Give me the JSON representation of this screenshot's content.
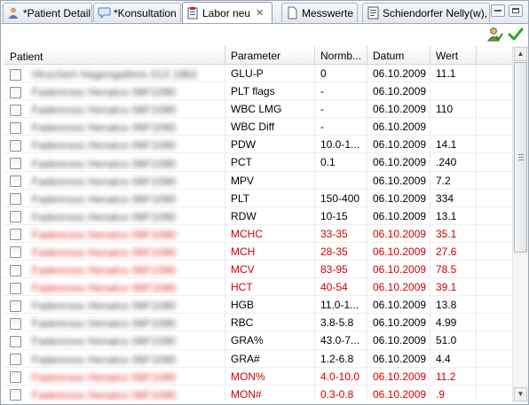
{
  "tabs": [
    {
      "label": "*Patient Detail",
      "icon": "patient-icon"
    },
    {
      "label": "*Konsultation",
      "icon": "speech-bubble-icon"
    },
    {
      "label": "Labor neu",
      "icon": "lab-clipboard-icon",
      "active": true,
      "closable": true
    },
    {
      "label": "Messwerte",
      "icon": "document-icon"
    },
    {
      "label": "Schiendorfer Nelly(w),",
      "icon": "patient-form-icon"
    }
  ],
  "toolbar": {
    "icons": [
      "assign-patient-icon",
      "confirm-check-icon"
    ]
  },
  "table": {
    "columns": [
      "Patient",
      "Parameter",
      "Normb...",
      "Datum",
      "Wert"
    ],
    "rows": [
      {
        "patient": "Hirschert Hagengallinis 013 1962",
        "parameter": "GLU-P",
        "norm": "0",
        "date": "06.10.2009",
        "value": "11.1",
        "flag": false
      },
      {
        "patient": "Fadenross Henalco 06F1090",
        "parameter": "PLT flags",
        "norm": "-",
        "date": "06.10.2009",
        "value": "",
        "flag": false
      },
      {
        "patient": "Fadenross Henalco 06F1090",
        "parameter": "WBC LMG",
        "norm": "-",
        "date": "06.10.2009",
        "value": "110",
        "flag": false
      },
      {
        "patient": "Fadenross Henalco 06F1090",
        "parameter": "WBC Diff",
        "norm": "-",
        "date": "06.10.2009",
        "value": "",
        "flag": false
      },
      {
        "patient": "Fadenross Henalco 06F1090",
        "parameter": "PDW",
        "norm": "10.0-1...",
        "date": "06.10.2009",
        "value": "14.1",
        "flag": false
      },
      {
        "patient": "Fadenross Henalco 06F1090",
        "parameter": "PCT",
        "norm": "0.1",
        "date": "06.10.2009",
        "value": ".240",
        "flag": false
      },
      {
        "patient": "Fadenross Henalco 06F1090",
        "parameter": "MPV",
        "norm": "",
        "date": "06.10.2009",
        "value": "7.2",
        "flag": false
      },
      {
        "patient": "Fadenross Henalco 06F1090",
        "parameter": "PLT",
        "norm": "150-400",
        "date": "06.10.2009",
        "value": "334",
        "flag": false
      },
      {
        "patient": "Fadenross Henalco 06F1090",
        "parameter": "RDW",
        "norm": "10-15",
        "date": "06.10.2009",
        "value": "13.1",
        "flag": false
      },
      {
        "patient": "Fadenross Henalco 06F1090",
        "parameter": "MCHC",
        "norm": "33-35",
        "date": "06.10.2009",
        "value": "35.1",
        "flag": true
      },
      {
        "patient": "Fadenross Henalco 06F1090",
        "parameter": "MCH",
        "norm": "28-35",
        "date": "06.10.2009",
        "value": "27.6",
        "flag": true
      },
      {
        "patient": "Fadenross Henalco 06F1090",
        "parameter": "MCV",
        "norm": "83-95",
        "date": "06.10.2009",
        "value": "78.5",
        "flag": true
      },
      {
        "patient": "Fadenross Henalco 06F1090",
        "parameter": "HCT",
        "norm": "40-54",
        "date": "06.10.2009",
        "value": "39.1",
        "flag": true
      },
      {
        "patient": "Fadenross Henalco 06F1090",
        "parameter": "HGB",
        "norm": "11.0-1...",
        "date": "06.10.2009",
        "value": "13.8",
        "flag": false
      },
      {
        "patient": "Fadenross Henalco 06F1090",
        "parameter": "RBC",
        "norm": "3.8-5.8",
        "date": "06.10.2009",
        "value": "4.99",
        "flag": false
      },
      {
        "patient": "Fadenross Henalco 06F1090",
        "parameter": "GRA%",
        "norm": "43.0-7...",
        "date": "06.10.2009",
        "value": "51.0",
        "flag": false
      },
      {
        "patient": "Fadenross Henalco 06F1090",
        "parameter": "GRA#",
        "norm": "1.2-6.8",
        "date": "06.10.2009",
        "value": "4.4",
        "flag": false
      },
      {
        "patient": "Fadenross Henalco 06F1090",
        "parameter": "MON%",
        "norm": "4.0-10.0",
        "date": "06.10.2009",
        "value": "11.2",
        "flag": true
      },
      {
        "patient": "Fadenross Henalco 06F1090",
        "parameter": "MON#",
        "norm": "0.3-0.8",
        "date": "06.10.2009",
        "value": ".9",
        "flag": true
      }
    ]
  },
  "colors": {
    "flag_text": "#d40000",
    "border": "#9aa7b5"
  }
}
